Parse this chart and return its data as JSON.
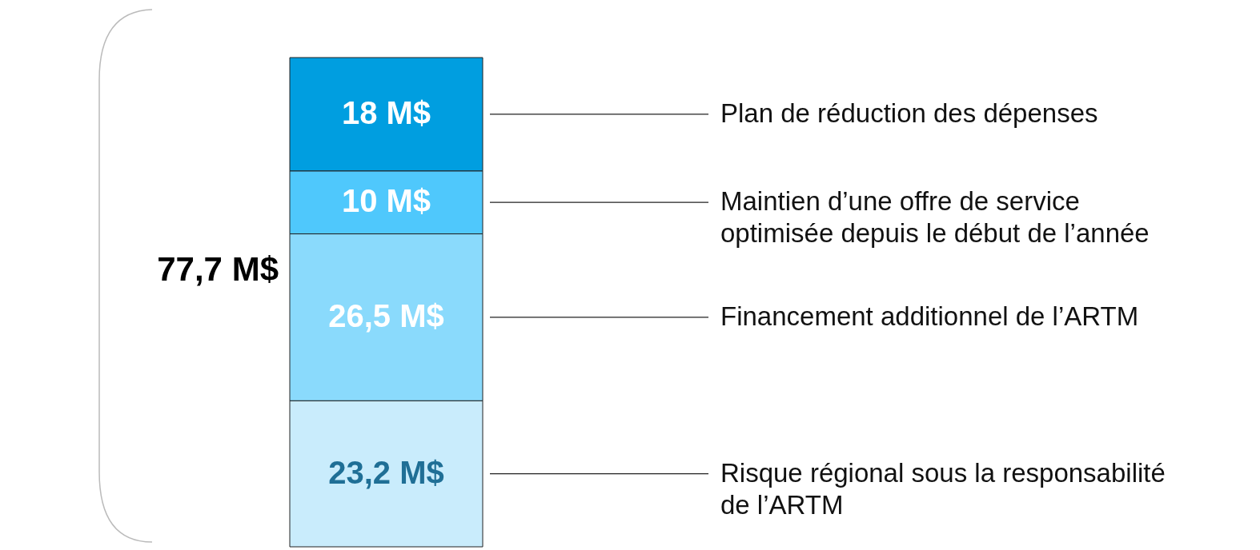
{
  "chart_data": {
    "type": "bar",
    "stacked": true,
    "categories": [
      null
    ],
    "tick_labels": false,
    "legend": false,
    "totals": [
      "77,7 M$"
    ],
    "series": [
      {
        "name": "Risque régional sous la responsabilité de l’ARTM",
        "color": "#c9ecfc",
        "values": [
          23.2
        ],
        "value_labels": [
          "23,2 M$"
        ]
      },
      {
        "name": "Financement additionnel de l’ARTM",
        "color": "#8adafc",
        "values": [
          26.5
        ],
        "value_labels": [
          "26,5 M$"
        ]
      },
      {
        "name": "Maintien d’une offre de service optimisée depuis le début de l’année",
        "color": "#4fc8fc",
        "values": [
          10
        ],
        "value_labels": [
          "10 M$"
        ]
      },
      {
        "name": "Plan de réduction des dépenses",
        "color": "#009ee0",
        "values": [
          18
        ],
        "value_labels": [
          "18 M$"
        ]
      }
    ]
  }
}
